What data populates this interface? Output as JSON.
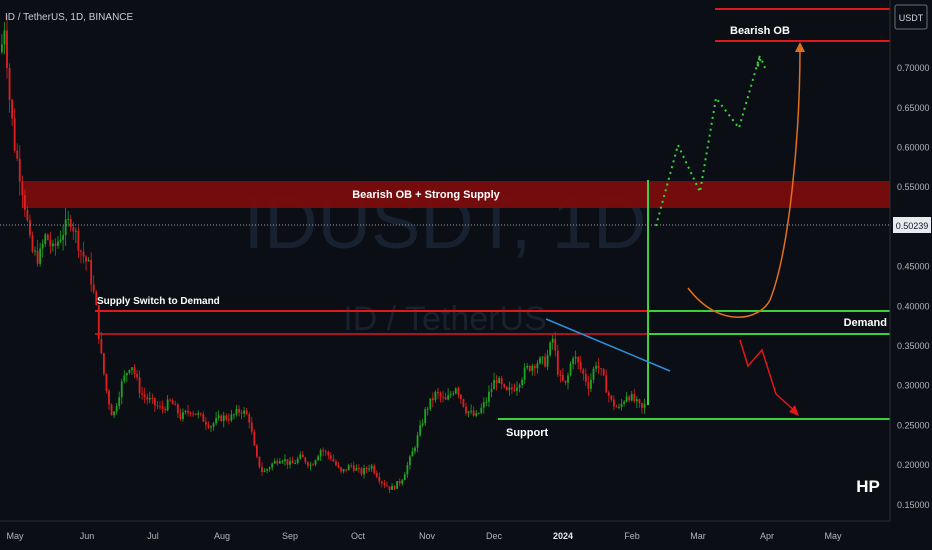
{
  "header": {
    "title": "ID / TetherUS, 1D, BINANCE",
    "currency": "USDT"
  },
  "watermark": {
    "symbol": "IDUSDT, 1D",
    "name": "ID / TetherUS"
  },
  "brand": "HP",
  "colors": {
    "bg": "#0b0e15",
    "up": "#1fa51f",
    "down": "#e02020",
    "zone": "#7a0d0d",
    "red_line": "#e01818",
    "green_line": "#3bd13b",
    "blue_line": "#2f8fd8",
    "orange": "#e0701c",
    "axis_text": "#b2b5be"
  },
  "chart_data": {
    "type": "candlestick",
    "title": "ID / TetherUS, 1D, BINANCE",
    "x_ticks": [
      "May",
      "Jun",
      "Jul",
      "Aug",
      "Sep",
      "Oct",
      "Nov",
      "Dec",
      "2024",
      "Feb",
      "Mar",
      "Apr",
      "May"
    ],
    "y_ticks": [
      "0.70000",
      "0.65000",
      "0.60000",
      "0.55000",
      "0.50000",
      "0.45000",
      "0.40000",
      "0.35000",
      "0.30000",
      "0.25000",
      "0.20000",
      "0.15000"
    ],
    "ylim": [
      0.13,
      0.76
    ],
    "current_price": "0.50239",
    "price_path": [
      [
        0,
        0.72
      ],
      [
        4,
        0.76
      ],
      [
        8,
        0.67
      ],
      [
        14,
        0.6
      ],
      [
        20,
        0.56
      ],
      [
        25,
        0.52
      ],
      [
        30,
        0.47
      ],
      [
        38,
        0.46
      ],
      [
        45,
        0.49
      ],
      [
        52,
        0.47
      ],
      [
        60,
        0.49
      ],
      [
        70,
        0.51
      ],
      [
        80,
        0.47
      ],
      [
        88,
        0.45
      ],
      [
        95,
        0.4
      ],
      [
        100,
        0.34
      ],
      [
        106,
        0.29
      ],
      [
        112,
        0.26
      ],
      [
        120,
        0.3
      ],
      [
        130,
        0.33
      ],
      [
        140,
        0.29
      ],
      [
        150,
        0.28
      ],
      [
        160,
        0.27
      ],
      [
        170,
        0.28
      ],
      [
        180,
        0.26
      ],
      [
        190,
        0.27
      ],
      [
        200,
        0.26
      ],
      [
        210,
        0.25
      ],
      [
        220,
        0.26
      ],
      [
        230,
        0.26
      ],
      [
        240,
        0.27
      ],
      [
        248,
        0.26
      ],
      [
        255,
        0.21
      ],
      [
        262,
        0.19
      ],
      [
        270,
        0.2
      ],
      [
        280,
        0.21
      ],
      [
        290,
        0.2
      ],
      [
        300,
        0.21
      ],
      [
        310,
        0.2
      ],
      [
        320,
        0.22
      ],
      [
        330,
        0.21
      ],
      [
        340,
        0.19
      ],
      [
        350,
        0.2
      ],
      [
        360,
        0.19
      ],
      [
        370,
        0.2
      ],
      [
        380,
        0.18
      ],
      [
        390,
        0.17
      ],
      [
        400,
        0.18
      ],
      [
        410,
        0.21
      ],
      [
        418,
        0.24
      ],
      [
        425,
        0.27
      ],
      [
        435,
        0.29
      ],
      [
        445,
        0.28
      ],
      [
        455,
        0.3
      ],
      [
        465,
        0.27
      ],
      [
        475,
        0.26
      ],
      [
        485,
        0.28
      ],
      [
        495,
        0.31
      ],
      [
        505,
        0.29
      ],
      [
        515,
        0.3
      ],
      [
        525,
        0.32
      ],
      [
        535,
        0.33
      ],
      [
        545,
        0.33
      ],
      [
        552,
        0.36
      ],
      [
        558,
        0.31
      ],
      [
        565,
        0.3
      ],
      [
        572,
        0.34
      ],
      [
        580,
        0.32
      ],
      [
        588,
        0.3
      ],
      [
        595,
        0.33
      ],
      [
        602,
        0.31
      ],
      [
        610,
        0.28
      ],
      [
        618,
        0.27
      ],
      [
        626,
        0.29
      ],
      [
        634,
        0.28
      ],
      [
        641,
        0.27
      ],
      [
        646,
        0.28
      ]
    ],
    "zones": [
      {
        "label": "Bearish OB + Strong Supply",
        "from": 0.522,
        "to": 0.555
      }
    ],
    "levels": [
      {
        "label": "Bearish OB",
        "value": 0.735
      },
      {
        "label": "",
        "value": 0.762
      },
      {
        "label": "Supply Switch to Demand",
        "value": 0.393
      },
      {
        "label": "",
        "value": 0.363
      },
      {
        "label": "Demand",
        "value": 0.393
      },
      {
        "label": "",
        "value": 0.362
      },
      {
        "label": "Support",
        "value": 0.258
      }
    ]
  },
  "annotations": {
    "bearish_ob": "Bearish OB",
    "supply_zone": "Bearish OB + Strong Supply",
    "supply_switch": "Supply Switch to Demand",
    "demand": "Demand",
    "support": "Support"
  }
}
